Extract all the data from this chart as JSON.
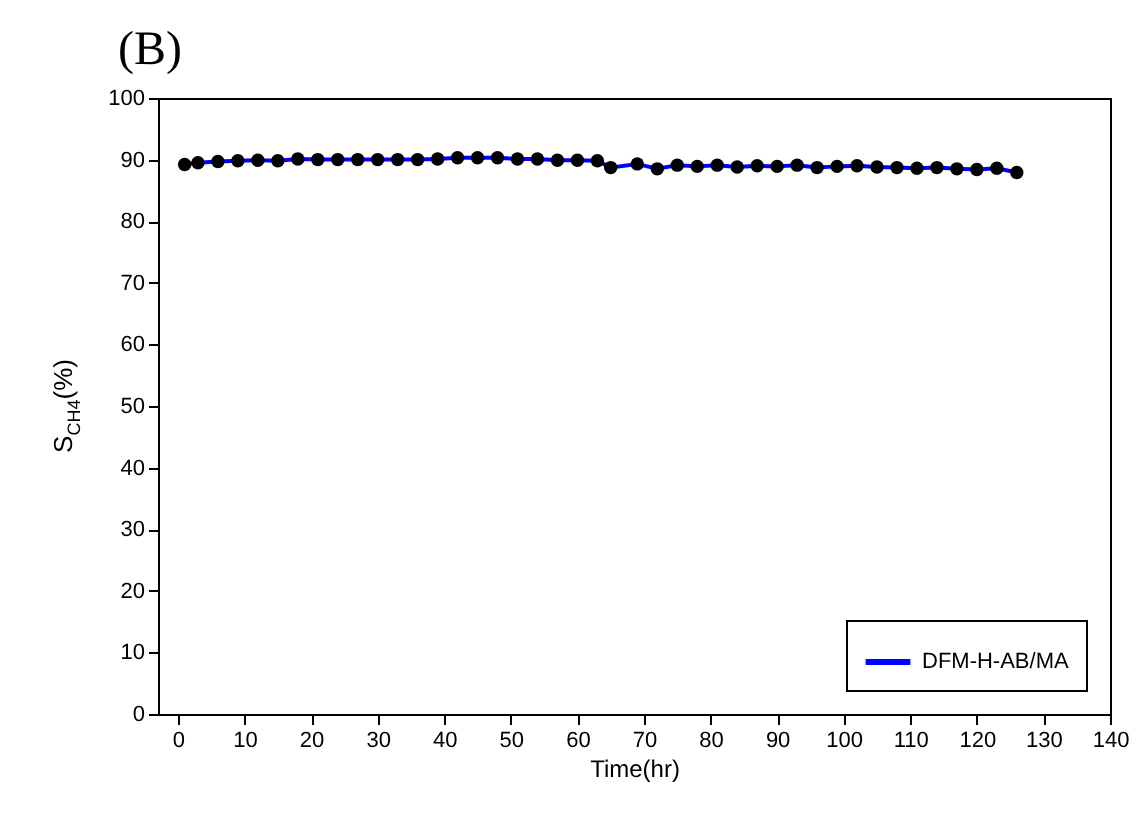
{
  "chart_data": {
    "type": "line",
    "title": "(B)",
    "xlabel": "Time(hr)",
    "ylabel": "S$_{CH4}$(%)",
    "x": [
      1,
      3,
      6,
      9,
      12,
      15,
      18,
      21,
      24,
      27,
      30,
      33,
      36,
      39,
      42,
      45,
      48,
      51,
      54,
      57,
      60,
      63,
      65,
      69,
      72,
      75,
      78,
      81,
      84,
      87,
      90,
      93,
      96,
      99,
      102,
      105,
      108,
      111,
      114,
      117,
      120,
      123,
      126
    ],
    "series": [
      {
        "name": "DFM-H-AB/MA",
        "color": "#0000ff",
        "values": [
          89.2,
          89.5,
          89.7,
          89.8,
          89.9,
          89.8,
          90.1,
          90,
          90,
          90,
          90,
          90,
          90,
          90.1,
          90.3,
          90.3,
          90.3,
          90.1,
          90.1,
          89.9,
          89.9,
          89.8,
          88.7,
          89.3,
          88.5,
          89.1,
          88.9,
          89.1,
          88.8,
          89,
          88.9,
          89.1,
          88.7,
          88.9,
          89,
          88.8,
          88.7,
          88.6,
          88.7,
          88.5,
          88.4,
          88.6,
          87.9
        ]
      }
    ],
    "xlim": [
      -3,
      140
    ],
    "xticks": [
      0,
      10,
      20,
      30,
      40,
      50,
      60,
      70,
      80,
      90,
      100,
      110,
      120,
      130,
      140
    ],
    "ylim": [
      0,
      100
    ],
    "yticks": [
      0,
      10,
      20,
      30,
      40,
      50,
      60,
      70,
      80,
      90,
      100
    ],
    "marker": "circle",
    "line_style": "solid",
    "legend": "bottom right",
    "grid": false
  }
}
